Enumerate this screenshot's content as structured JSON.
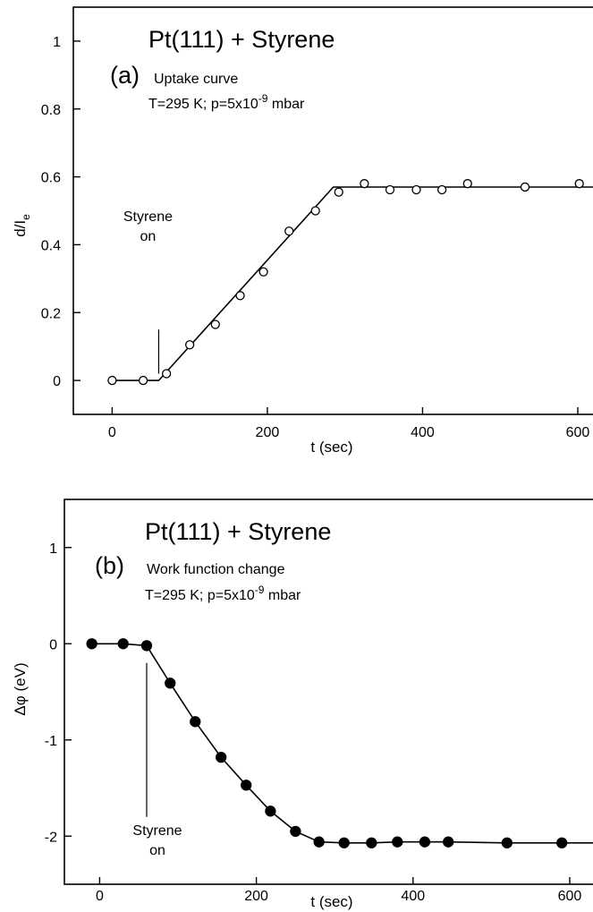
{
  "chart_data": [
    {
      "type": "scatter",
      "panel": "a",
      "title": "Pt(111) + Styrene",
      "panel_label": "(a)",
      "subtitle": "Uptake curve",
      "conditions": {
        "prefix": "T=295 K; p=5x10",
        "exponent": "-9",
        "suffix": " mbar"
      },
      "xlabel": "t (sec)",
      "ylabel": {
        "main": "d/I",
        "sub": "e"
      },
      "xlim": [
        -50,
        630
      ],
      "ylim": [
        -0.1,
        1.1
      ],
      "xticks": [
        0,
        200,
        400,
        600
      ],
      "yticks": [
        0,
        0.2,
        0.4,
        0.6,
        0.8,
        1
      ],
      "xtick_labels": [
        "0",
        "200",
        "400",
        "600"
      ],
      "ytick_labels": [
        "0",
        "0.2",
        "0.4",
        "0.6",
        "0.8",
        "1"
      ],
      "grid": false,
      "marker": "open-circle",
      "points": [
        {
          "x": 0,
          "y": 0.0
        },
        {
          "x": 40,
          "y": 0.0
        },
        {
          "x": 70,
          "y": 0.02
        },
        {
          "x": 100,
          "y": 0.105
        },
        {
          "x": 133,
          "y": 0.165
        },
        {
          "x": 165,
          "y": 0.25
        },
        {
          "x": 195,
          "y": 0.32
        },
        {
          "x": 228,
          "y": 0.44
        },
        {
          "x": 262,
          "y": 0.5
        },
        {
          "x": 292,
          "y": 0.555
        },
        {
          "x": 325,
          "y": 0.58
        },
        {
          "x": 358,
          "y": 0.562
        },
        {
          "x": 392,
          "y": 0.562
        },
        {
          "x": 425,
          "y": 0.562
        },
        {
          "x": 458,
          "y": 0.58
        },
        {
          "x": 532,
          "y": 0.57
        },
        {
          "x": 602,
          "y": 0.58
        }
      ],
      "fit_line": [
        {
          "x": 0,
          "y": 0.0
        },
        {
          "x": 60,
          "y": 0.0
        },
        {
          "x": 285,
          "y": 0.57
        },
        {
          "x": 625,
          "y": 0.57
        }
      ],
      "annotation": {
        "lines": [
          "Styrene",
          "on"
        ],
        "x": 60,
        "line_from": 0.15,
        "line_to": 0.02
      }
    },
    {
      "type": "line",
      "panel": "b",
      "title": "Pt(111) + Styrene",
      "panel_label": "(b)",
      "subtitle": "Work function change",
      "conditions": {
        "prefix": "T=295 K; p=5x10",
        "exponent": "-9",
        "suffix": " mbar"
      },
      "xlabel": "t (sec)",
      "ylabel": {
        "main": "Δφ (eV)",
        "sub": ""
      },
      "xlim": [
        -45,
        640
      ],
      "ylim": [
        -2.5,
        1.5
      ],
      "xticks": [
        0,
        200,
        400,
        600
      ],
      "yticks": [
        1,
        0,
        -1,
        -2
      ],
      "xtick_labels": [
        "0",
        "200",
        "400",
        "600"
      ],
      "ytick_labels": [
        "1",
        "0",
        "-1",
        "-2"
      ],
      "grid": false,
      "marker": "filled-circle",
      "points": [
        {
          "x": -10,
          "y": 0.0
        },
        {
          "x": 30,
          "y": 0.0
        },
        {
          "x": 60,
          "y": -0.02
        },
        {
          "x": 90,
          "y": -0.41
        },
        {
          "x": 122,
          "y": -0.81
        },
        {
          "x": 155,
          "y": -1.18
        },
        {
          "x": 187,
          "y": -1.47
        },
        {
          "x": 218,
          "y": -1.74
        },
        {
          "x": 250,
          "y": -1.95
        },
        {
          "x": 280,
          "y": -2.06
        },
        {
          "x": 312,
          "y": -2.07
        },
        {
          "x": 347,
          "y": -2.07
        },
        {
          "x": 380,
          "y": -2.06
        },
        {
          "x": 415,
          "y": -2.06
        },
        {
          "x": 445,
          "y": -2.06
        },
        {
          "x": 520,
          "y": -2.07
        },
        {
          "x": 590,
          "y": -2.07
        }
      ],
      "line_extends_to": {
        "x": 640,
        "y": -2.07
      },
      "annotation": {
        "lines": [
          "Styrene",
          "on"
        ],
        "x": 60,
        "line_from": -0.2,
        "line_to": -1.8
      }
    }
  ]
}
